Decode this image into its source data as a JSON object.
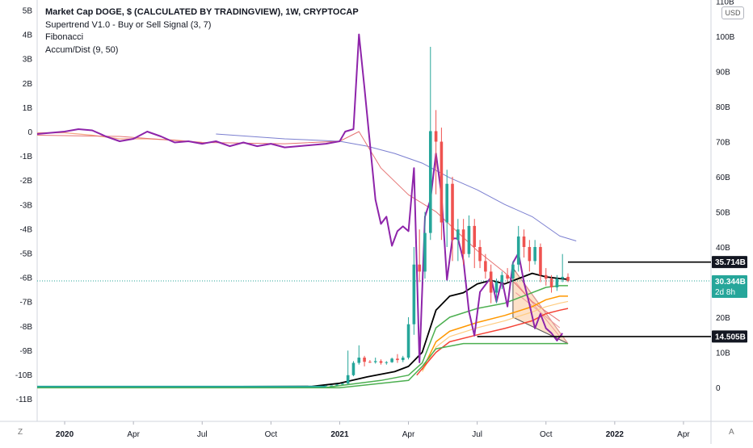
{
  "legend": {
    "title": "Market Cap DOGE, $ (CALCULATED BY TRADINGVIEW), 1W, CRYPTOCAP",
    "indicators": [
      "Supertrend V1.0 - Buy or Sell Signal (3, 7)",
      "Fibonacci",
      "Accum/Dist (9, 50)"
    ]
  },
  "toolbar": {
    "currency": "USD",
    "left_btn": "Z",
    "right_btn": "A"
  },
  "chart_data": {
    "type": "candlestick",
    "title": "Market Cap DOGE, $ (CALCULATED BY TRADINGVIEW), 1W, CRYPTOCAP",
    "right_axis": {
      "ticks": [
        "110B",
        "100B",
        "90B",
        "80B",
        "70B",
        "60B",
        "50B",
        "40B",
        "30B",
        "20B",
        "10B",
        "0"
      ],
      "values": [
        110,
        100,
        90,
        80,
        70,
        60,
        50,
        40,
        30,
        20,
        10,
        0
      ],
      "unit": "B"
    },
    "left_axis": {
      "ticks": [
        "5B",
        "4B",
        "3B",
        "2B",
        "1B",
        "0",
        "-1B",
        "-2B",
        "-3B",
        "-4B",
        "-5B",
        "-6B",
        "-7B",
        "-8B",
        "-9B",
        "-10B",
        "-11B"
      ],
      "values": [
        5,
        4,
        3,
        2,
        1,
        0,
        -1,
        -2,
        -3,
        -4,
        -5,
        -6,
        -7,
        -8,
        -9,
        -10,
        -11
      ],
      "unit": "B"
    },
    "x_axis": {
      "ticks": [
        "2020",
        "Apr",
        "Jul",
        "Oct",
        "2021",
        "Apr",
        "Jul",
        "Oct",
        "2022",
        "Apr"
      ],
      "values": [
        2020.0,
        2020.25,
        2020.5,
        2020.75,
        2021.0,
        2021.25,
        2021.5,
        2021.75,
        2022.0,
        2022.25
      ],
      "range": [
        2019.9,
        2022.35
      ]
    },
    "price_labels": [
      {
        "text": "35.714B",
        "value": 35.714,
        "style": "black"
      },
      {
        "text": "30.344B",
        "sub": "2d 8h",
        "value": 30.344,
        "style": "green"
      },
      {
        "text": "14.505B",
        "value": 14.505,
        "style": "black"
      }
    ],
    "candles": [
      [
        2020.95,
        0.5,
        0.6,
        0.4,
        0.55
      ],
      [
        2020.97,
        0.55,
        0.6,
        0.5,
        0.58
      ],
      [
        2020.99,
        0.58,
        0.9,
        0.55,
        0.85
      ],
      [
        2021.01,
        0.85,
        1.2,
        0.8,
        1.1
      ],
      [
        2021.03,
        1.1,
        10.5,
        1.0,
        3.5
      ],
      [
        2021.05,
        3.5,
        7.5,
        3.2,
        7.0
      ],
      [
        2021.07,
        7.0,
        12.0,
        6.5,
        8.5
      ],
      [
        2021.09,
        8.5,
        9.0,
        6.0,
        7.3
      ],
      [
        2021.11,
        7.3,
        7.8,
        7.0,
        7.2
      ],
      [
        2021.13,
        7.2,
        8.5,
        6.8,
        7.5
      ],
      [
        2021.15,
        7.5,
        8.0,
        6.5,
        7.0
      ],
      [
        2021.17,
        7.0,
        7.5,
        6.5,
        7.2
      ],
      [
        2021.19,
        7.2,
        8.5,
        7.0,
        8.2
      ],
      [
        2021.21,
        8.2,
        9.5,
        7.0,
        7.8
      ],
      [
        2021.23,
        7.8,
        9.0,
        7.2,
        8.5
      ],
      [
        2021.25,
        8.5,
        20.0,
        8.0,
        18.0
      ],
      [
        2021.27,
        18.0,
        40.0,
        15.0,
        35.0
      ],
      [
        2021.29,
        35.0,
        45.0,
        30.0,
        33.0
      ],
      [
        2021.31,
        33.0,
        50.0,
        31.0,
        44.0
      ],
      [
        2021.33,
        44.0,
        97.0,
        42.0,
        73.0
      ],
      [
        2021.35,
        73.0,
        79.0,
        55.0,
        70.0
      ],
      [
        2021.37,
        70.0,
        74.0,
        42.0,
        47.0
      ],
      [
        2021.39,
        47.0,
        62.0,
        40.0,
        58.0
      ],
      [
        2021.41,
        58.0,
        60.0,
        36.0,
        42.0
      ],
      [
        2021.43,
        42.0,
        48.0,
        36.0,
        45.0
      ],
      [
        2021.45,
        45.0,
        48.0,
        35.0,
        38.0
      ],
      [
        2021.47,
        38.0,
        49.0,
        37.0,
        46.0
      ],
      [
        2021.49,
        46.0,
        48.0,
        34.0,
        40.0
      ],
      [
        2021.51,
        40.0,
        42.0,
        34.0,
        36.0
      ],
      [
        2021.53,
        36.0,
        38.0,
        31.0,
        33.0
      ],
      [
        2021.55,
        33.0,
        35.0,
        24.0,
        27.0
      ],
      [
        2021.57,
        27.0,
        31.0,
        24.0,
        30.0
      ],
      [
        2021.59,
        30.0,
        33.0,
        28.0,
        32.0
      ],
      [
        2021.61,
        32.0,
        34.0,
        30.0,
        31.0
      ],
      [
        2021.63,
        31.0,
        36.0,
        30.0,
        35.0
      ],
      [
        2021.65,
        35.0,
        46.0,
        33.0,
        43.0
      ],
      [
        2021.67,
        43.0,
        45.0,
        37.0,
        40.0
      ],
      [
        2021.69,
        40.0,
        42.0,
        33.0,
        36.0
      ],
      [
        2021.71,
        36.0,
        42.0,
        35.0,
        40.0
      ],
      [
        2021.73,
        40.0,
        41.0,
        30.0,
        32.0
      ],
      [
        2021.75,
        32.0,
        34.0,
        29.0,
        31.0
      ],
      [
        2021.77,
        31.0,
        32.0,
        27.0,
        28.5
      ],
      [
        2021.79,
        28.5,
        32.0,
        27.5,
        31.0
      ],
      [
        2021.81,
        31.0,
        38.0,
        30.0,
        31.5
      ],
      [
        2021.83,
        31.5,
        32.5,
        30.0,
        30.3
      ]
    ],
    "series": [
      {
        "name": "",
        "color": "#000000",
        "width": 1.8,
        "points": [
          [
            2019.9,
            0.1
          ],
          [
            2020.9,
            0.3
          ],
          [
            2021.0,
            1.2
          ],
          [
            2021.1,
            3.0
          ],
          [
            2021.2,
            4.5
          ],
          [
            2021.25,
            6
          ],
          [
            2021.3,
            10
          ],
          [
            2021.35,
            22
          ],
          [
            2021.4,
            26
          ],
          [
            2021.45,
            27
          ],
          [
            2021.5,
            29.5
          ],
          [
            2021.55,
            30.5
          ],
          [
            2021.6,
            29.5
          ],
          [
            2021.65,
            31
          ],
          [
            2021.7,
            32.5
          ],
          [
            2021.75,
            31.5
          ],
          [
            2021.8,
            31
          ],
          [
            2021.83,
            30.8
          ]
        ]
      },
      {
        "name": "",
        "color": "#4caf50",
        "width": 1.5,
        "points": [
          [
            2019.9,
            0
          ],
          [
            2020.95,
            0
          ],
          [
            2021.0,
            0.5
          ],
          [
            2021.15,
            2
          ],
          [
            2021.25,
            3.5
          ],
          [
            2021.3,
            7
          ],
          [
            2021.35,
            17
          ],
          [
            2021.4,
            20
          ],
          [
            2021.5,
            22.5
          ],
          [
            2021.6,
            24
          ],
          [
            2021.7,
            27
          ],
          [
            2021.75,
            28.5
          ],
          [
            2021.8,
            29
          ],
          [
            2021.83,
            29
          ]
        ]
      },
      {
        "name": "",
        "color": "#ff9800",
        "width": 1.5,
        "points": [
          [
            2021.3,
            5
          ],
          [
            2021.35,
            13
          ],
          [
            2021.4,
            16
          ],
          [
            2021.5,
            18.5
          ],
          [
            2021.6,
            20.5
          ],
          [
            2021.7,
            23
          ],
          [
            2021.75,
            25
          ],
          [
            2021.8,
            26
          ],
          [
            2021.83,
            26
          ]
        ]
      },
      {
        "name": "",
        "color": "#ffcc80",
        "width": 1.2,
        "points": [
          [
            2021.3,
            4.5
          ],
          [
            2021.35,
            11.5
          ],
          [
            2021.4,
            14.5
          ],
          [
            2021.5,
            17
          ],
          [
            2021.6,
            19
          ],
          [
            2021.7,
            21.5
          ],
          [
            2021.75,
            23
          ],
          [
            2021.8,
            24
          ],
          [
            2021.83,
            24.5
          ]
        ]
      },
      {
        "name": "",
        "color": "#f44336",
        "width": 1.5,
        "points": [
          [
            2021.28,
            3.5
          ],
          [
            2021.35,
            10
          ],
          [
            2021.4,
            13
          ],
          [
            2021.5,
            15
          ],
          [
            2021.6,
            16.8
          ],
          [
            2021.7,
            19
          ],
          [
            2021.75,
            21
          ],
          [
            2021.8,
            22
          ],
          [
            2021.83,
            22.5
          ]
        ]
      },
      {
        "name": "",
        "color": "#4caf50",
        "width": 1.5,
        "points": [
          [
            2019.9,
            -0.1
          ],
          [
            2021.0,
            -0.1
          ],
          [
            2021.25,
            2
          ],
          [
            2021.3,
            6
          ],
          [
            2021.35,
            11
          ],
          [
            2021.45,
            12.5
          ],
          [
            2021.5,
            12.5
          ],
          [
            2021.83,
            12.5
          ]
        ]
      }
    ],
    "ad_line": {
      "color": "#8e24aa",
      "width": 2,
      "axis": "left",
      "points": [
        [
          2019.9,
          -0.1
        ],
        [
          2020.0,
          0
        ],
        [
          2020.05,
          0.1
        ],
        [
          2020.1,
          0.05
        ],
        [
          2020.15,
          -0.2
        ],
        [
          2020.2,
          -0.4
        ],
        [
          2020.25,
          -0.3
        ],
        [
          2020.3,
          0
        ],
        [
          2020.35,
          -0.2
        ],
        [
          2020.4,
          -0.45
        ],
        [
          2020.45,
          -0.4
        ],
        [
          2020.5,
          -0.5
        ],
        [
          2020.55,
          -0.4
        ],
        [
          2020.6,
          -0.6
        ],
        [
          2020.65,
          -0.45
        ],
        [
          2020.7,
          -0.6
        ],
        [
          2020.75,
          -0.5
        ],
        [
          2020.8,
          -0.65
        ],
        [
          2020.85,
          -0.6
        ],
        [
          2020.9,
          -0.55
        ],
        [
          2020.95,
          -0.5
        ],
        [
          2021.0,
          -0.4
        ],
        [
          2021.02,
          0
        ],
        [
          2021.05,
          0.1
        ],
        [
          2021.07,
          4.0
        ],
        [
          2021.09,
          1.8
        ],
        [
          2021.11,
          -0.5
        ],
        [
          2021.13,
          -2.8
        ],
        [
          2021.15,
          -3.8
        ],
        [
          2021.17,
          -3.5
        ],
        [
          2021.19,
          -4.7
        ],
        [
          2021.21,
          -4.1
        ],
        [
          2021.23,
          -3.9
        ],
        [
          2021.25,
          -4.1
        ],
        [
          2021.27,
          -1.5
        ],
        [
          2021.29,
          -9.5
        ],
        [
          2021.31,
          -3.5
        ],
        [
          2021.33,
          -2.8
        ],
        [
          2021.35,
          -0.9
        ],
        [
          2021.37,
          -2.6
        ],
        [
          2021.39,
          -6.1
        ],
        [
          2021.41,
          -4.4
        ],
        [
          2021.43,
          -4.4
        ],
        [
          2021.45,
          -5.3
        ],
        [
          2021.47,
          -7.4
        ],
        [
          2021.49,
          -8.4
        ],
        [
          2021.51,
          -6.6
        ],
        [
          2021.55,
          -6.0
        ],
        [
          2021.57,
          -7.0
        ],
        [
          2021.59,
          -6.1
        ],
        [
          2021.61,
          -7.2
        ],
        [
          2021.63,
          -5.4
        ],
        [
          2021.65,
          -5.0
        ],
        [
          2021.67,
          -6.2
        ],
        [
          2021.69,
          -7.1
        ],
        [
          2021.71,
          -8.1
        ],
        [
          2021.73,
          -7.5
        ],
        [
          2021.75,
          -8.1
        ],
        [
          2021.77,
          -8.3
        ],
        [
          2021.79,
          -8.6
        ],
        [
          2021.81,
          -8.3
        ]
      ]
    },
    "ad_ma": {
      "color": "#e57373",
      "width": 1,
      "axis": "left",
      "points": [
        [
          2019.9,
          -0.15
        ],
        [
          2020.2,
          -0.2
        ],
        [
          2020.5,
          -0.45
        ],
        [
          2020.8,
          -0.5
        ],
        [
          2021.0,
          -0.4
        ],
        [
          2021.07,
          0
        ],
        [
          2021.15,
          -1.5
        ],
        [
          2021.25,
          -2.6
        ],
        [
          2021.35,
          -3.3
        ],
        [
          2021.5,
          -4.9
        ],
        [
          2021.6,
          -5.8
        ],
        [
          2021.7,
          -7.0
        ],
        [
          2021.8,
          -7.8
        ]
      ]
    },
    "ad_long": {
      "color": "#7b7fd0",
      "width": 1,
      "axis": "left",
      "points": [
        [
          2020.55,
          -0.1
        ],
        [
          2020.8,
          -0.3
        ],
        [
          2021.0,
          -0.4
        ],
        [
          2021.1,
          -0.6
        ],
        [
          2021.2,
          -0.9
        ],
        [
          2021.3,
          -1.3
        ],
        [
          2021.4,
          -1.9
        ],
        [
          2021.5,
          -2.4
        ],
        [
          2021.6,
          -3.0
        ],
        [
          2021.7,
          -3.5
        ],
        [
          2021.8,
          -4.3
        ],
        [
          2021.86,
          -4.5
        ]
      ]
    },
    "ad_early": {
      "color": "#f4a582",
      "width": 1.2,
      "axis": "left",
      "points": [
        [
          2019.9,
          -0.05
        ],
        [
          2020.0,
          -0.05
        ],
        [
          2020.1,
          -0.15
        ],
        [
          2020.2,
          -0.3
        ],
        [
          2020.3,
          -0.3
        ],
        [
          2020.4,
          -0.35
        ],
        [
          2020.5,
          -0.45
        ]
      ]
    },
    "fib_triangle": {
      "color": "#555555",
      "points": [
        [
          2021.63,
          34
        ],
        [
          2021.83,
          12.5
        ],
        [
          2021.63,
          20
        ]
      ],
      "fill": "#fbc99a"
    },
    "fib_fan": {
      "color": "#ef9a9a",
      "lines": [
        [
          [
            2021.64,
            33
          ],
          [
            2021.83,
            12.5
          ]
        ],
        [
          [
            2021.64,
            30
          ],
          [
            2021.8,
            14.5
          ]
        ],
        [
          [
            2021.64,
            27
          ],
          [
            2021.8,
            17
          ]
        ]
      ]
    },
    "hlines": [
      {
        "value": 35.714,
        "x_from": 2021.83,
        "color": "#000000"
      },
      {
        "value": 14.505,
        "x_from": 2021.5,
        "color": "#000000"
      },
      {
        "value": 30.344,
        "x_from": 2019.9,
        "color": "#26a69a",
        "style": "dotted"
      }
    ]
  }
}
